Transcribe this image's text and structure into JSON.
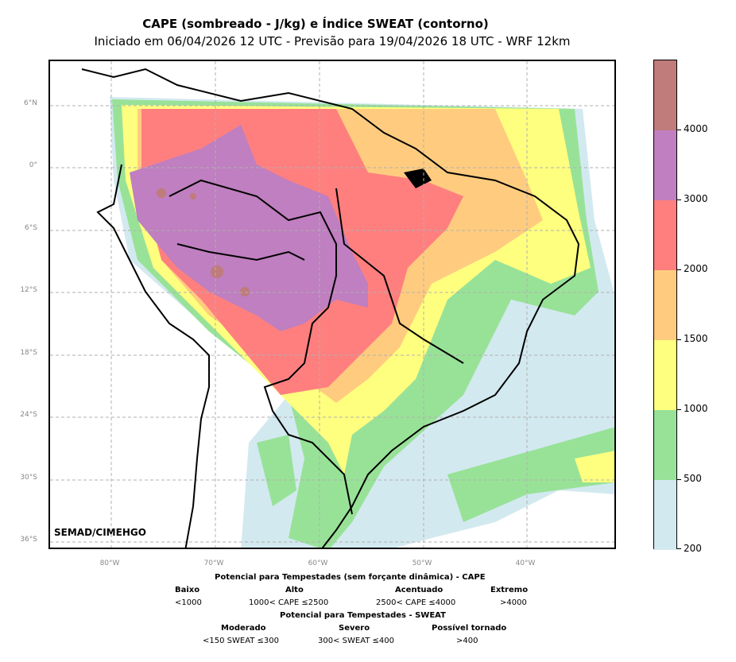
{
  "title": {
    "line1": "CAPE (sombreado - J/kg) e Índice SWEAT (contorno)",
    "line2": "Iniciado em 06/04/2026 12 UTC - Previsão para 19/04/2026 18 UTC - WRF 12km"
  },
  "map": {
    "credit": "SEMAD/CIMEHGO",
    "lat_labels": [
      "6°N",
      "0°",
      "6°S",
      "12°S",
      "18°S",
      "24°S",
      "30°S",
      "36°S"
    ],
    "lon_labels": [
      "80°W",
      "70°W",
      "60°W",
      "50°W",
      "40°W"
    ]
  },
  "colorbar": {
    "ticks": [
      "4000",
      "3000",
      "2000",
      "1500",
      "1000",
      "500",
      "200"
    ],
    "colors": [
      "#c07b7b",
      "#bf7fc0",
      "#ff7f7f",
      "#ffcc7f",
      "#ffff7f",
      "#98e298",
      "#d3e9f0"
    ]
  },
  "legend": {
    "cape_title": "Potencial para Tempestades (sem forçante dinâmica) - CAPE",
    "cape": [
      {
        "name": "Baixo",
        "range": "<1000"
      },
      {
        "name": "Alto",
        "range": "1000< CAPE ≤2500"
      },
      {
        "name": "Acentuado",
        "range": "2500< CAPE ≤4000"
      },
      {
        "name": "Extremo",
        "range": ">4000"
      }
    ],
    "sweat_title": "Potencial para Tempestades - SWEAT",
    "sweat": [
      {
        "name": "Moderado",
        "range": "<150 SWEAT ≤300"
      },
      {
        "name": "Severo",
        "range": "300< SWEAT ≤400"
      },
      {
        "name": "Possível tornado",
        "range": ">400"
      }
    ]
  }
}
